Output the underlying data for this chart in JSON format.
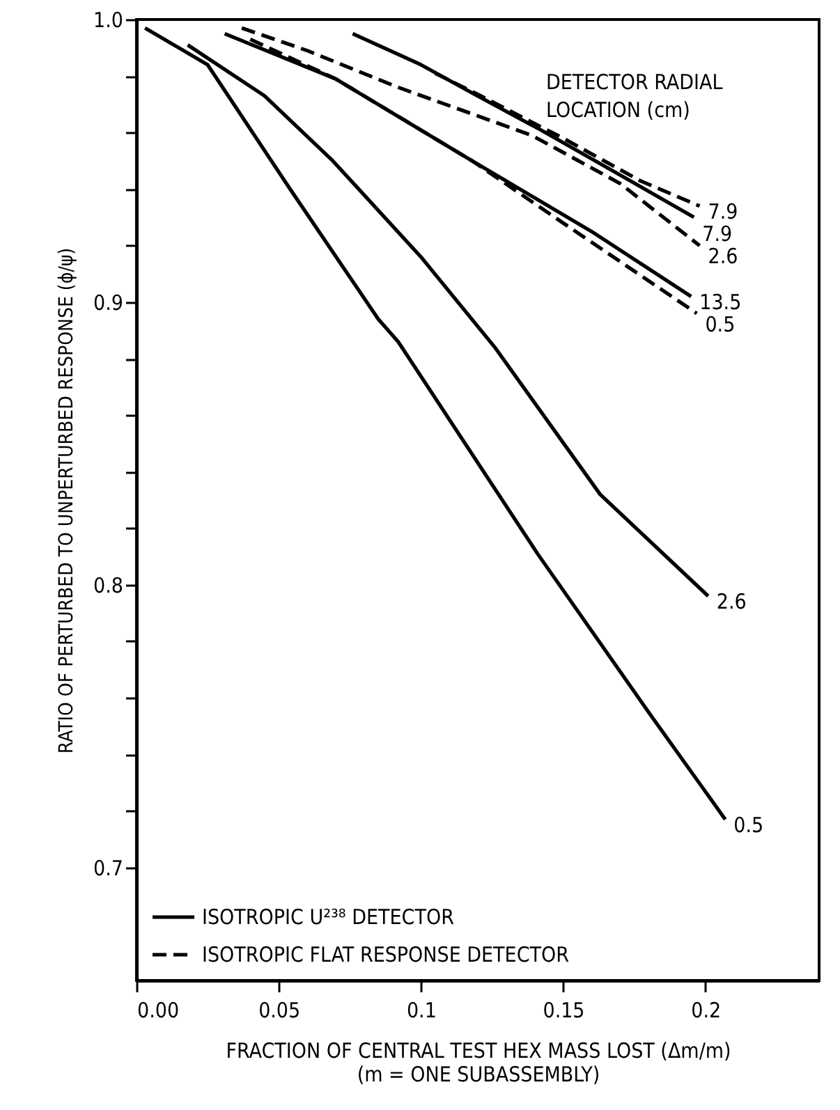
{
  "chart_data": {
    "type": "line",
    "xlabel": "FRACTION OF CENTRAL TEST HEX MASS LOST (Δm/m)\n(m = ONE SUBASSEMBLY)",
    "ylabel": "RATIO OF PERTURBED TO UNPERTURBED RESPONSE (ϕ/ψ)",
    "annotations": [
      "DETECTOR RADIAL\nLOCATION (cm)",
      {
        "text": "7.9",
        "x": 0.198,
        "y": 0.934
      },
      {
        "text": "7.9",
        "x": 0.196,
        "y": 0.93
      },
      {
        "text": "2.6",
        "x": 0.198,
        "y": 0.92
      },
      {
        "text": "13.5",
        "x": 0.195,
        "y": 0.902
      },
      {
        "text": "0.5",
        "x": 0.197,
        "y": 0.896
      },
      {
        "text": "2.6",
        "x": 0.201,
        "y": 0.796
      },
      {
        "text": "0.5",
        "x": 0.207,
        "y": 0.717
      }
    ],
    "xlim": [
      0,
      0.24
    ],
    "ylim": [
      0.66,
      1.0
    ],
    "xticks": [
      {
        "value": 0,
        "label": "0.00"
      },
      0.05,
      0.1,
      0.15,
      0.2
    ],
    "yticks": [
      {
        "value": 0.7,
        "label": "0.7"
      },
      {
        "value": 0.72,
        "label": null
      },
      {
        "value": 0.74,
        "label": null
      },
      {
        "value": 0.76,
        "label": null
      },
      {
        "value": 0.78,
        "label": null
      },
      {
        "value": 0.8,
        "label": "0.8"
      },
      {
        "value": 0.82,
        "label": null
      },
      {
        "value": 0.84,
        "label": null
      },
      {
        "value": 0.86,
        "label": null
      },
      {
        "value": 0.88,
        "label": null
      },
      {
        "value": 0.9,
        "label": "0.9"
      },
      {
        "value": 0.92,
        "label": null
      },
      {
        "value": 0.94,
        "label": null
      },
      {
        "value": 0.96,
        "label": null
      },
      {
        "value": 0.98,
        "label": null
      },
      {
        "value": 1.0,
        "label": "1.0"
      }
    ],
    "legend": "bottom left",
    "marker": "none",
    "grid": false,
    "series": [
      {
        "name": "ISOTROPIC U²³⁸ DETECTOR",
        "color": "#000000",
        "line_style": "solid",
        "x": [
          0.076,
          0.1,
          0.118,
          0.142,
          0.17,
          0.196
        ],
        "values": [
          0.995,
          0.984,
          0.974,
          0.961,
          0.945,
          0.93
        ]
      },
      {
        "name": "ISOTROPIC FLAT RESPONSE DETECTOR",
        "color": "#000000",
        "line_style": "dashed",
        "x": [
          0.105,
          0.121,
          0.15,
          0.177,
          0.198
        ],
        "values": [
          0.981,
          0.973,
          0.958,
          0.943,
          0.934
        ]
      },
      {
        "color": "#000000",
        "line_style": "dashed",
        "x": [
          0.037,
          0.06,
          0.092,
          0.139,
          0.17,
          0.198
        ],
        "values": [
          0.997,
          0.989,
          0.976,
          0.959,
          0.942,
          0.92
        ]
      },
      {
        "color": "#000000",
        "line_style": "solid",
        "x": [
          0.031,
          0.07,
          0.118,
          0.16,
          0.195
        ],
        "values": [
          0.995,
          0.979,
          0.95,
          0.925,
          0.902
        ]
      },
      {
        "color": "#000000",
        "line_style": "dashed",
        "x": [
          0.04,
          0.07,
          0.118,
          0.15,
          0.197
        ],
        "values": [
          0.993,
          0.979,
          0.95,
          0.928,
          0.896
        ]
      },
      {
        "color": "#000000",
        "line_style": "solid",
        "x": [
          0.018,
          0.045,
          0.069,
          0.1,
          0.126,
          0.163,
          0.201
        ],
        "values": [
          0.991,
          0.973,
          0.95,
          0.916,
          0.884,
          0.832,
          0.796
        ]
      },
      {
        "color": "#000000",
        "line_style": "solid",
        "x": [
          0.003,
          0.025,
          0.054,
          0.085,
          0.092,
          0.141,
          0.18,
          0.207
        ],
        "values": [
          0.997,
          0.984,
          0.94,
          0.894,
          0.886,
          0.811,
          0.755,
          0.717
        ]
      }
    ]
  }
}
